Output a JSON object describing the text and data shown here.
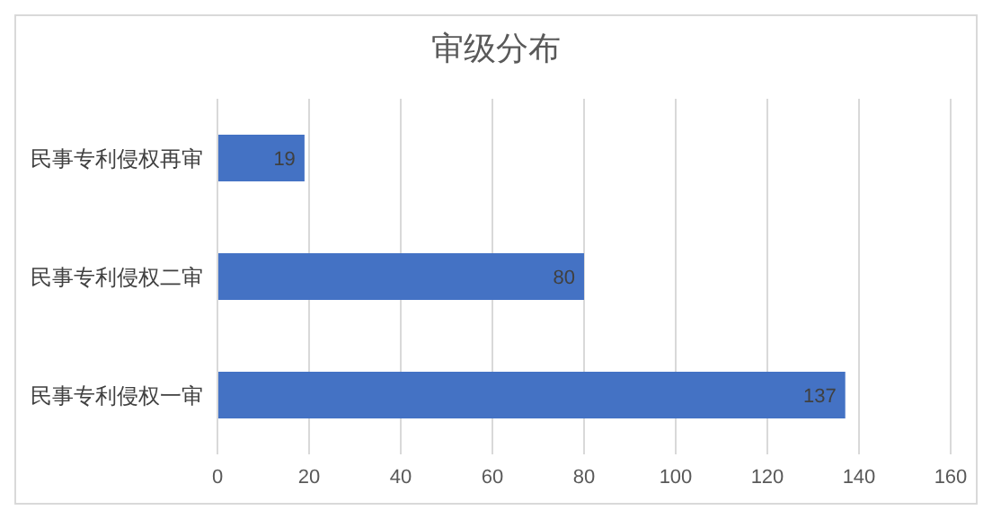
{
  "chart_data": {
    "type": "bar",
    "orientation": "horizontal",
    "title": "审级分布",
    "categories": [
      "民事专利侵权再审",
      "民事专利侵权二审",
      "民事专利侵权一审"
    ],
    "values": [
      19,
      80,
      137
    ],
    "color": "#4472c4",
    "xlim": [
      0,
      160
    ],
    "xticks": [
      0,
      20,
      40,
      60,
      80,
      100,
      120,
      140,
      160
    ],
    "grid": "x",
    "data_labels": true
  }
}
